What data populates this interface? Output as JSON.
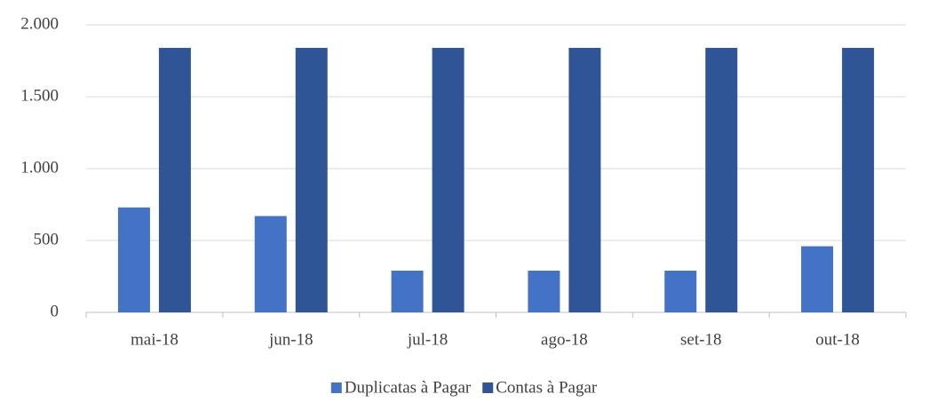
{
  "chart_data": {
    "type": "bar",
    "categories": [
      "mai-18",
      "jun-18",
      "jul-18",
      "ago-18",
      "set-18",
      "out-18"
    ],
    "series": [
      {
        "name": "Duplicatas à Pagar",
        "color": "#4472c4",
        "values": [
          730,
          670,
          290,
          290,
          290,
          460
        ]
      },
      {
        "name": "Contas à Pagar",
        "color": "#2f5597",
        "values": [
          1840,
          1840,
          1840,
          1840,
          1840,
          1840
        ]
      }
    ],
    "ylim": [
      0,
      2000
    ],
    "yticks": [
      0,
      500,
      {
        "value": 1000,
        "label": "1.000"
      },
      {
        "value": 1500,
        "label": "1.500"
      },
      {
        "value": 2000,
        "label": "2.000"
      }
    ],
    "grid": true,
    "legend": "bottom"
  }
}
